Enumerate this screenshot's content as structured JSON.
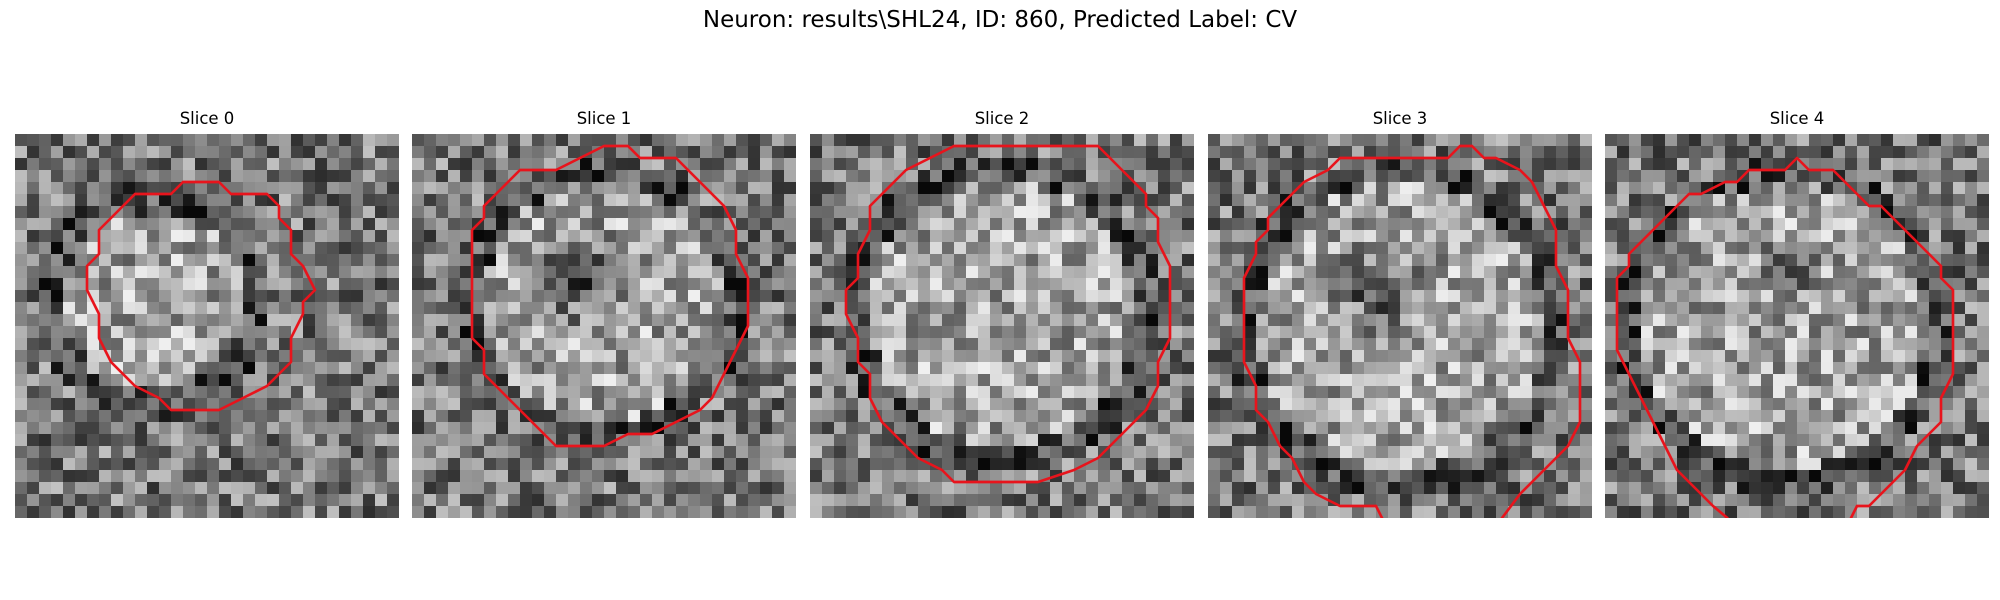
{
  "figure": {
    "title": "Neuron: results\\SHL24, ID: 860, Predicted Label: CV"
  },
  "colors": {
    "contour": "#e8141c",
    "background": "#ffffff"
  },
  "panels": [
    {
      "title": "Slice 0"
    },
    {
      "title": "Slice 1"
    },
    {
      "title": "Slice 2"
    },
    {
      "title": "Slice 3"
    },
    {
      "title": "Slice 4"
    }
  ]
}
